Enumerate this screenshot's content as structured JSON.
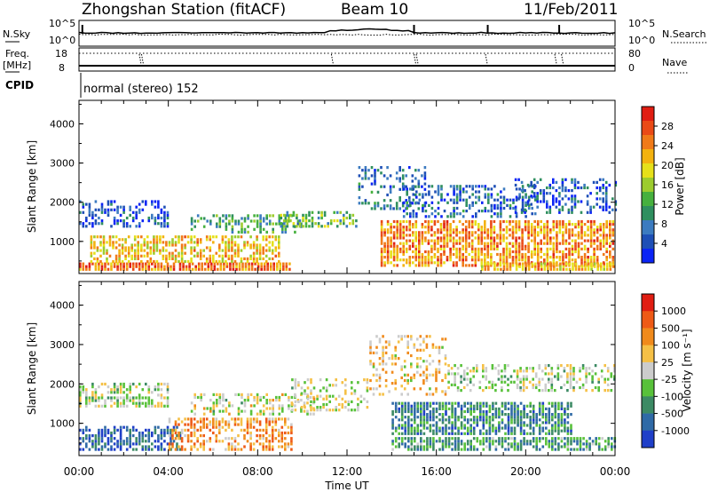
{
  "header": {
    "station_title": "Zhongshan Station (fitACF)",
    "beam": "Beam 10",
    "date": "11/Feb/2011"
  },
  "status_panels": {
    "nsky_label": "N.Sky",
    "nsearch_label": "N.Search",
    "exp_top_left": "10^5",
    "exp_bot_left": "10^0",
    "exp_top_right": "10^5",
    "exp_bot_right": "10^0",
    "freq_label": "Freq.",
    "freq_unit": "[MHz]",
    "freq_tick_top": "18",
    "freq_tick_bot": "8",
    "nave_label": "Nave",
    "nave_tick_top": "80",
    "nave_tick_bot": "0",
    "cpid_label": "CPID",
    "cpid_value": "normal (stereo) 152"
  },
  "chart_data": [
    {
      "type": "heatmap",
      "panel": "power",
      "ylabel": "Slant Range [km]",
      "ylim": [
        180,
        4600
      ],
      "yticks": [
        "1000",
        "2000",
        "3000",
        "4000"
      ],
      "xlim_hours": [
        0,
        24
      ],
      "colorbar": {
        "label": "Power [dB]",
        "ticks": [
          "4",
          "8",
          "12",
          "16",
          "20",
          "24",
          "28"
        ],
        "colors": [
          "#0b24f5",
          "#1e4fb6",
          "#3c7bc0",
          "#2f8f5f",
          "#46b03e",
          "#9ccc2e",
          "#e6e01a",
          "#f3b20f",
          "#f07a18",
          "#ea4a16",
          "#e01d12"
        ]
      },
      "regions": [
        {
          "t0": 0.0,
          "t1": 4.0,
          "r0": 1350,
          "r1": 2050,
          "level": 0.15,
          "density": 0.45
        },
        {
          "t0": 0.0,
          "t1": 9.5,
          "r0": 250,
          "r1": 420,
          "level": 0.8,
          "density": 0.9
        },
        {
          "t0": 0.5,
          "t1": 9.0,
          "r0": 450,
          "r1": 1100,
          "level": 0.65,
          "density": 0.6
        },
        {
          "t0": 5.0,
          "t1": 10.0,
          "r0": 1200,
          "r1": 1650,
          "level": 0.35,
          "density": 0.45
        },
        {
          "t0": 9.0,
          "t1": 12.5,
          "r0": 1350,
          "r1": 1750,
          "level": 0.4,
          "density": 0.55
        },
        {
          "t0": 12.5,
          "t1": 15.5,
          "r0": 1800,
          "r1": 2900,
          "level": 0.2,
          "density": 0.35
        },
        {
          "t0": 13.5,
          "t1": 24.0,
          "r0": 350,
          "r1": 1500,
          "level": 0.75,
          "density": 0.7
        },
        {
          "t0": 14.5,
          "t1": 20.5,
          "r0": 1600,
          "r1": 2400,
          "level": 0.2,
          "density": 0.4
        },
        {
          "t0": 19.5,
          "t1": 24.0,
          "r0": 1700,
          "r1": 2600,
          "level": 0.15,
          "density": 0.35
        },
        {
          "t0": 18.0,
          "t1": 24.0,
          "r0": 250,
          "r1": 450,
          "level": 0.7,
          "density": 0.85
        }
      ]
    },
    {
      "type": "heatmap",
      "panel": "velocity",
      "ylabel": "Slant Range [km]",
      "ylim": [
        180,
        4600
      ],
      "yticks": [
        "1000",
        "2000",
        "3000",
        "4000"
      ],
      "xlim_hours": [
        0,
        24
      ],
      "xticks": [
        "00:00",
        "04:00",
        "08:00",
        "12:00",
        "16:00",
        "20:00",
        "00:00"
      ],
      "xlabel": "Time UT",
      "colorbar": {
        "label": "Velocity [m s⁻¹]",
        "ticks": [
          "1000",
          "500",
          "100",
          "25",
          "-25",
          "-100",
          "-500",
          "-1000"
        ],
        "colors": [
          "#1f3fc8",
          "#2f6aa6",
          "#3c8a64",
          "#58c13a",
          "#cccccc",
          "#f5c046",
          "#f08a1c",
          "#ee5a16",
          "#e01d12"
        ]
      },
      "regions": [
        {
          "t0": 0.0,
          "t1": 4.0,
          "r0": 1400,
          "r1": 2000,
          "level": 0.48,
          "density": 0.55
        },
        {
          "t0": 0.0,
          "t1": 4.5,
          "r0": 300,
          "r1": 900,
          "level": 0.15,
          "density": 0.6
        },
        {
          "t0": 4.0,
          "t1": 9.5,
          "r0": 300,
          "r1": 1100,
          "level": 0.7,
          "density": 0.55
        },
        {
          "t0": 5.0,
          "t1": 10.5,
          "r0": 1200,
          "r1": 1700,
          "level": 0.5,
          "density": 0.4
        },
        {
          "t0": 9.5,
          "t1": 13.0,
          "r0": 1300,
          "r1": 2100,
          "level": 0.5,
          "density": 0.35
        },
        {
          "t0": 13.0,
          "t1": 16.5,
          "r0": 1700,
          "r1": 3200,
          "level": 0.6,
          "density": 0.3
        },
        {
          "t0": 14.0,
          "t1": 22.0,
          "r0": 700,
          "r1": 1500,
          "level": 0.25,
          "density": 0.75
        },
        {
          "t0": 14.0,
          "t1": 24.0,
          "r0": 300,
          "r1": 650,
          "level": 0.3,
          "density": 0.7
        },
        {
          "t0": 16.5,
          "t1": 24.0,
          "r0": 1800,
          "r1": 2500,
          "level": 0.48,
          "density": 0.45
        }
      ]
    }
  ]
}
